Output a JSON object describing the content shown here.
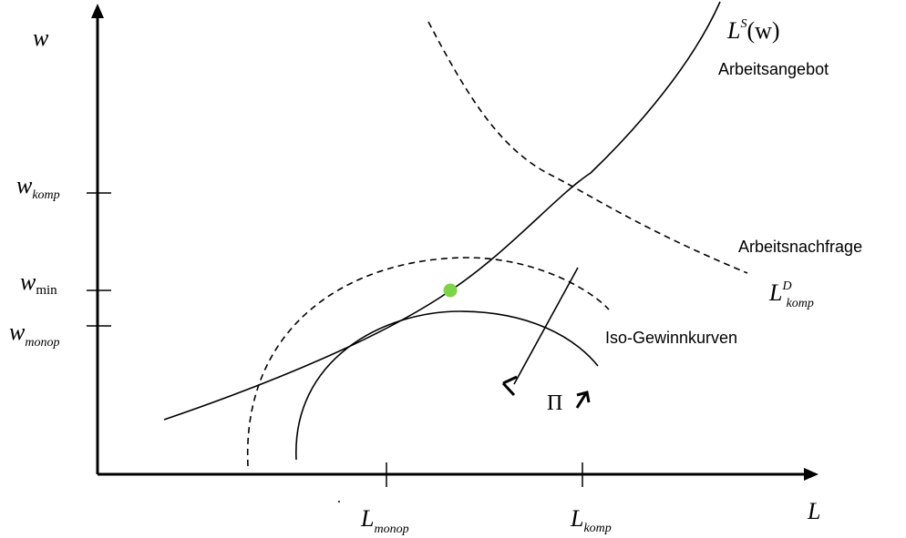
{
  "diagram": {
    "axes": {
      "y_label": "w",
      "x_label": "L"
    },
    "y_ticks": [
      {
        "main": "w",
        "sub": "komp",
        "sub_italic": true
      },
      {
        "main": "w",
        "sub": "min",
        "sub_italic": false
      },
      {
        "main": "w",
        "sub": "monop",
        "sub_italic": true
      }
    ],
    "x_ticks": [
      {
        "main": "L",
        "sub": "monop"
      },
      {
        "main": "L",
        "sub": "komp"
      }
    ],
    "supply_curve": {
      "label_main": "L",
      "label_sup": "S",
      "label_arg": "(w)",
      "description": "Arbeitsangebot"
    },
    "demand_curve": {
      "label_main": "L",
      "label_sup": "D",
      "label_sub": "komp",
      "description": "Arbeitsnachfrage"
    },
    "iso_profit": {
      "label": "Iso-Gewinnkurven",
      "symbol": "Π"
    },
    "colors": {
      "line": "#000000",
      "point": "#7ed348"
    }
  }
}
